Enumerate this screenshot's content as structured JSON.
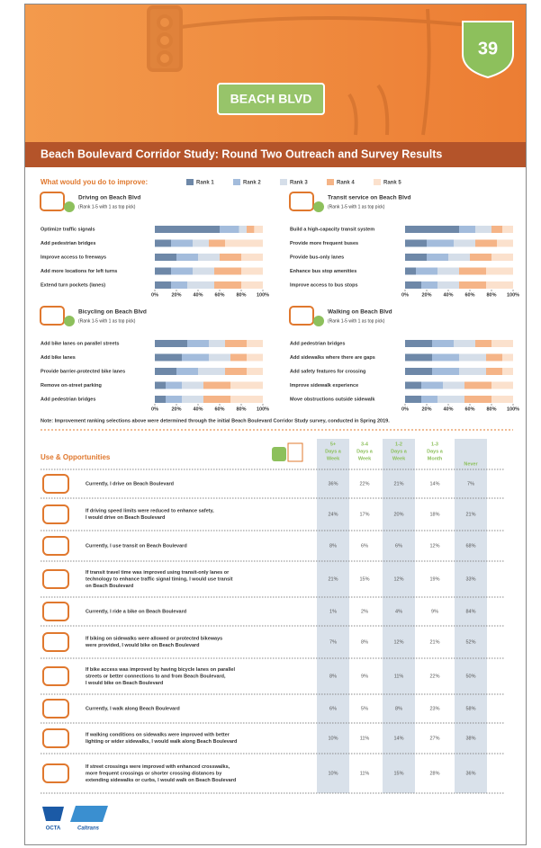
{
  "header": {
    "route": "39",
    "sign": "BEACH BLVD",
    "title": "Beach Boulevard Corridor Study: Round Two Outreach and Survey Results"
  },
  "improve": {
    "heading": "What would you do to improve:"
  },
  "chart_data": [
    {
      "type": "bar",
      "title": "Driving on Beach Blvd",
      "subtitle": "(Rank 1-5 with 1 as top pick)",
      "categories": [
        "Optimize traffic signals",
        "Add pedestrian bridges",
        "Improve access to freeways",
        "Add more locations for left turns",
        "Extend turn pockets (lanes)"
      ],
      "series": [
        {
          "name": "Rank 1",
          "color": "#6e88a8",
          "values": [
            60,
            15,
            20,
            15,
            15
          ]
        },
        {
          "name": "Rank 2",
          "color": "#a3bcdc",
          "values": [
            18,
            20,
            20,
            20,
            15
          ]
        },
        {
          "name": "Rank 3",
          "color": "#d5dee9",
          "values": [
            7,
            15,
            20,
            20,
            25
          ]
        },
        {
          "name": "Rank 4",
          "color": "#f5b487",
          "values": [
            7,
            15,
            20,
            25,
            25
          ]
        },
        {
          "name": "Rank 5",
          "color": "#fbe1cd",
          "values": [
            8,
            35,
            20,
            20,
            20
          ]
        }
      ],
      "xlim": [
        0,
        100
      ],
      "xticks": [
        {
          "value": 0,
          "label": "0%"
        },
        {
          "value": 20,
          "label": "20%"
        },
        {
          "value": 40,
          "label": "40%"
        },
        {
          "value": 60,
          "label": "60%"
        },
        {
          "value": 80,
          "label": "80%"
        },
        {
          "value": 100,
          "label": "100%"
        }
      ]
    },
    {
      "type": "bar",
      "title": "Transit service on Beach Blvd",
      "subtitle": "(Rank 1-5 with 1 as top pick)",
      "categories": [
        "Build a high-capacity transit system",
        "Provide more frequent buses",
        "Provide bus-only lanes",
        "Enhance bus stop amenities",
        "Improve access to bus stops"
      ],
      "series": [
        {
          "color": "#6e88a8",
          "values": [
            50,
            20,
            20,
            10,
            15
          ]
        },
        {
          "color": "#a3bcdc",
          "values": [
            15,
            25,
            20,
            20,
            15
          ]
        },
        {
          "color": "#d5dee9",
          "values": [
            15,
            20,
            20,
            20,
            20
          ]
        },
        {
          "color": "#f5b487",
          "values": [
            10,
            20,
            20,
            25,
            25
          ]
        },
        {
          "color": "#fbe1cd",
          "values": [
            10,
            15,
            20,
            25,
            25
          ]
        }
      ],
      "xlim": [
        0,
        100
      ],
      "xticks": [
        {
          "value": 0,
          "label": "0%"
        },
        {
          "value": 20,
          "label": "20%"
        },
        {
          "value": 40,
          "label": "40%"
        },
        {
          "value": 60,
          "label": "60%"
        },
        {
          "value": 80,
          "label": "80%"
        },
        {
          "value": 100,
          "label": "100%"
        }
      ]
    },
    {
      "type": "bar",
      "title": "Bicycling on Beach Blvd",
      "subtitle": "(Rank 1-5 with 1 as top pick)",
      "categories": [
        "Add bike lanes on parallel streets",
        "Add bike lanes",
        "Provide barrier-protected bike lanes",
        "Remove on-street parking",
        "Add pedestrian bridges"
      ],
      "series": [
        {
          "color": "#6e88a8",
          "values": [
            30,
            25,
            20,
            10,
            10
          ]
        },
        {
          "color": "#a3bcdc",
          "values": [
            20,
            25,
            20,
            15,
            15
          ]
        },
        {
          "color": "#d5dee9",
          "values": [
            15,
            20,
            25,
            20,
            20
          ]
        },
        {
          "color": "#f5b487",
          "values": [
            20,
            15,
            20,
            25,
            25
          ]
        },
        {
          "color": "#fbe1cd",
          "values": [
            15,
            15,
            15,
            30,
            30
          ]
        }
      ],
      "xlim": [
        0,
        100
      ],
      "xticks": [
        {
          "value": 0,
          "label": "0%"
        },
        {
          "value": 20,
          "label": "20%"
        },
        {
          "value": 40,
          "label": "40%"
        },
        {
          "value": 60,
          "label": "60%"
        },
        {
          "value": 80,
          "label": "80%"
        },
        {
          "value": 100,
          "label": "100%"
        }
      ]
    },
    {
      "type": "bar",
      "title": "Walking on Beach Blvd",
      "subtitle": "(Rank 1-5 with 1 as top pick)",
      "categories": [
        "Add pedestrian bridges",
        "Add sidewalks where there are gaps",
        "Add safety features for crossing",
        "Improve sidewalk experience",
        "Move obstructions outside sidewalk"
      ],
      "series": [
        {
          "color": "#6e88a8",
          "values": [
            25,
            25,
            25,
            15,
            15
          ]
        },
        {
          "color": "#a3bcdc",
          "values": [
            20,
            25,
            25,
            20,
            15
          ]
        },
        {
          "color": "#d5dee9",
          "values": [
            20,
            25,
            25,
            20,
            25
          ]
        },
        {
          "color": "#f5b487",
          "values": [
            15,
            15,
            15,
            25,
            25
          ]
        },
        {
          "color": "#fbe1cd",
          "values": [
            20,
            10,
            10,
            20,
            20
          ]
        }
      ],
      "xlim": [
        0,
        100
      ],
      "xticks": [
        {
          "value": 0,
          "label": "0%"
        },
        {
          "value": 20,
          "label": "20%"
        },
        {
          "value": 40,
          "label": "40%"
        },
        {
          "value": 60,
          "label": "60%"
        },
        {
          "value": 80,
          "label": "80%"
        },
        {
          "value": 100,
          "label": "100%"
        }
      ]
    }
  ],
  "note": "Note: Improvement ranking selections above were determined through the initial Beach Boulevard Corridor Study survey, conducted in Spring 2019.",
  "table": {
    "title": "Use & Opportunities",
    "columns": [
      [
        "5+",
        "Days a",
        "Week"
      ],
      [
        "3-4",
        "Days a",
        "Week"
      ],
      [
        "1-2",
        "Days a",
        "Week"
      ],
      [
        "1-3",
        "Days a",
        "Month"
      ],
      [
        "Never"
      ]
    ],
    "rows": [
      {
        "text": [
          "Currently, I drive on Beach Boulevard"
        ],
        "values": [
          "36%",
          "22%",
          "21%",
          "14%",
          "7%"
        ]
      },
      {
        "text": [
          "If driving speed limits were reduced to enhance safety,",
          "I would drive on Beach Boulevard"
        ],
        "values": [
          "24%",
          "17%",
          "20%",
          "18%",
          "21%"
        ]
      },
      {
        "text": [
          "Currently, I use transit on Beach Boulevard"
        ],
        "values": [
          "8%",
          "6%",
          "6%",
          "12%",
          "68%"
        ]
      },
      {
        "text": [
          "If transit travel time was improved using transit-only lanes or",
          "technology to enhance traffic signal timing, I would use transit",
          "on Beach Boulevard"
        ],
        "values": [
          "21%",
          "15%",
          "12%",
          "19%",
          "33%"
        ]
      },
      {
        "text": [
          "Currently, I ride a bike on Beach Boulevard"
        ],
        "values": [
          "1%",
          "2%",
          "4%",
          "9%",
          "84%"
        ]
      },
      {
        "text": [
          "If biking on sidewalks were allowed or protected bikeways",
          "were provided, I would bike on Beach Boulevard"
        ],
        "values": [
          "7%",
          "8%",
          "12%",
          "21%",
          "52%"
        ]
      },
      {
        "text": [
          "If bike access was improved by having bicycle lanes on parallel",
          "streets or better connections to and from Beach Boulevard,",
          "I would bike on Beach Boulevard"
        ],
        "values": [
          "8%",
          "9%",
          "11%",
          "22%",
          "50%"
        ]
      },
      {
        "text": [
          "Currently, I walk along Beach Boulevard"
        ],
        "values": [
          "6%",
          "5%",
          "8%",
          "23%",
          "58%"
        ]
      },
      {
        "text": [
          "If walking conditions on sidewalks were improved with better",
          "lighting or wider sidewalks, I would walk along Beach Boulevard"
        ],
        "values": [
          "10%",
          "11%",
          "14%",
          "27%",
          "38%"
        ]
      },
      {
        "text": [
          "If street crossings were improved with enhanced crosswalks,",
          "more frequent crossings or shorter crossing distances by",
          "extending sidewalks or curbs, I would walk on Beach Boulevard"
        ],
        "values": [
          "10%",
          "11%",
          "15%",
          "28%",
          "36%"
        ]
      }
    ]
  },
  "footer": {
    "logos": [
      "OCTA",
      "Caltrans"
    ]
  }
}
